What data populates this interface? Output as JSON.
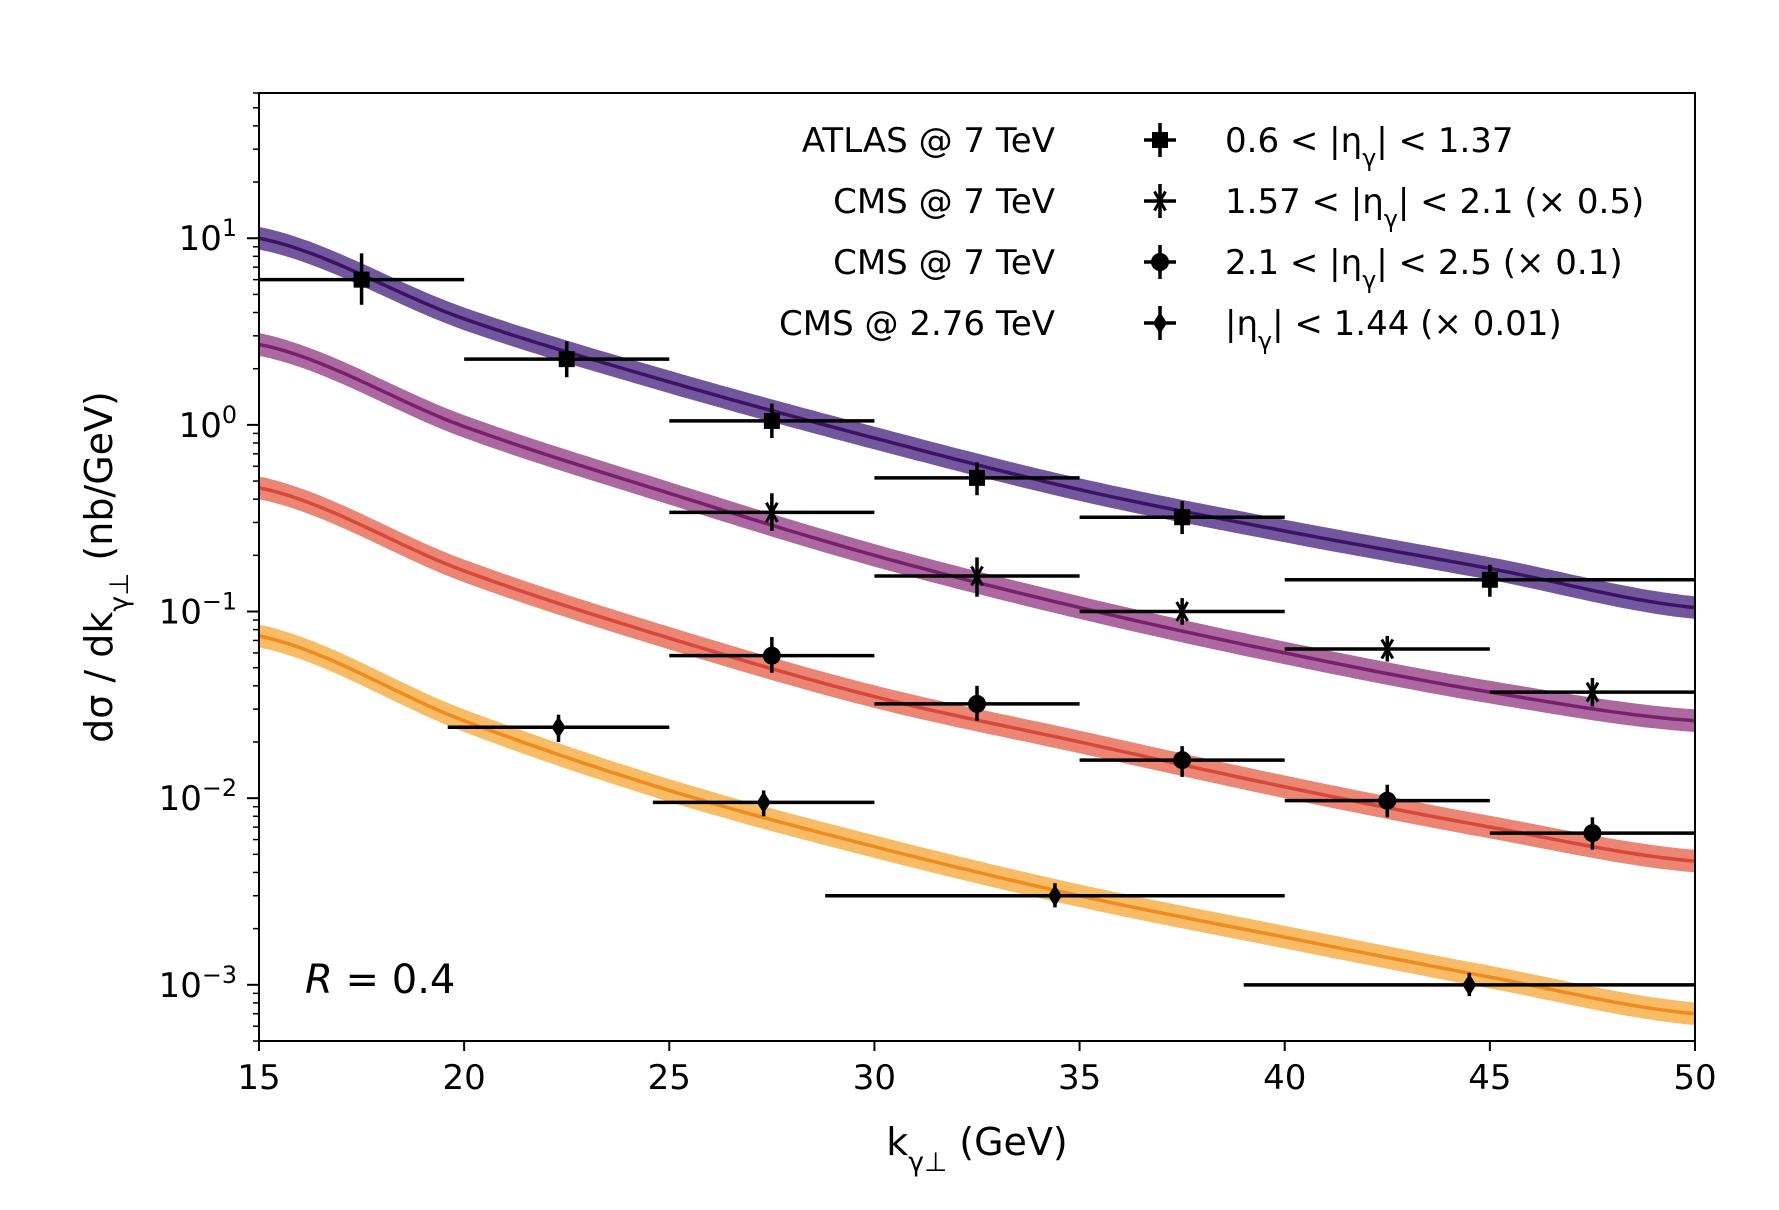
{
  "chart_data": {
    "type": "line",
    "title": "",
    "xlabel": "k_{γ⊥} (GeV)",
    "ylabel": "dσ / dk_{γ⊥}  (nb/GeV)",
    "xlim": [
      15,
      50
    ],
    "ylim": [
      0.0005,
      60
    ],
    "yscale": "log",
    "x_ticks": [
      15,
      20,
      25,
      30,
      35,
      40,
      45,
      50
    ],
    "y_ticks": [
      {
        "value": 0.001,
        "exp": "−3"
      },
      {
        "value": 0.01,
        "exp": "−2"
      },
      {
        "value": 0.1,
        "exp": "−1"
      },
      {
        "value": 1,
        "exp": "0"
      },
      {
        "value": 10,
        "exp": "1"
      }
    ],
    "grid": false,
    "legend_position": "top-right",
    "annotation": {
      "italic": "R",
      "rest": " = 0.4"
    },
    "series": [
      {
        "experiment": "ATLAS @ 7 TeV",
        "range": "0.6 < |η_γ| < 1.37",
        "marker": "square",
        "band_color": "#5b3a8c",
        "line_color": "#3b1366",
        "theory": {
          "x": [
            15,
            20,
            25,
            30,
            35,
            40,
            45,
            50
          ],
          "y": [
            10,
            3.7,
            1.7,
            0.85,
            0.45,
            0.27,
            0.17,
            0.105
          ]
        },
        "points": [
          {
            "x": 17.5,
            "y": 6.0,
            "xerr": [
              15,
              20
            ],
            "yerr": [
              4.4,
              8.3
            ]
          },
          {
            "x": 22.5,
            "y": 2.25,
            "xerr": [
              20,
              25
            ],
            "yerr": [
              1.8,
              2.8
            ]
          },
          {
            "x": 27.5,
            "y": 1.05,
            "xerr": [
              25,
              30
            ],
            "yerr": [
              0.85,
              1.3
            ]
          },
          {
            "x": 32.5,
            "y": 0.52,
            "xerr": [
              30,
              35
            ],
            "yerr": [
              0.42,
              0.63
            ]
          },
          {
            "x": 37.5,
            "y": 0.32,
            "xerr": [
              35,
              40
            ],
            "yerr": [
              0.26,
              0.39
            ]
          },
          {
            "x": 45.0,
            "y": 0.148,
            "xerr": [
              40,
              50
            ],
            "yerr": [
              0.12,
              0.178
            ]
          }
        ]
      },
      {
        "experiment": "CMS @ 7 TeV",
        "range": "1.57 < |η_γ| < 2.1 (× 0.5)",
        "marker": "star",
        "band_color": "#9e4f8e",
        "line_color": "#7a1f6e",
        "theory": {
          "x": [
            15,
            20,
            25,
            30,
            35,
            40,
            45,
            50
          ],
          "y": [
            2.7,
            0.98,
            0.43,
            0.2,
            0.105,
            0.06,
            0.037,
            0.026
          ]
        },
        "points": [
          {
            "x": 27.5,
            "y": 0.34,
            "xerr": [
              25,
              30
            ],
            "yerr": [
              0.27,
              0.43
            ]
          },
          {
            "x": 32.5,
            "y": 0.155,
            "xerr": [
              30,
              35
            ],
            "yerr": [
              0.12,
              0.195
            ]
          },
          {
            "x": 37.5,
            "y": 0.1,
            "xerr": [
              35,
              40
            ],
            "yerr": [
              0.085,
              0.118
            ]
          },
          {
            "x": 42.5,
            "y": 0.063,
            "xerr": [
              40,
              45
            ],
            "yerr": [
              0.054,
              0.074
            ]
          },
          {
            "x": 47.5,
            "y": 0.037,
            "xerr": [
              45,
              50
            ],
            "yerr": [
              0.031,
              0.044
            ]
          }
        ]
      },
      {
        "experiment": "CMS @ 7 TeV",
        "range": "2.1 < |η_γ| < 2.5 (× 0.1)",
        "marker": "circle",
        "band_color": "#e8705c",
        "line_color": "#d9463a",
        "theory": {
          "x": [
            15,
            20,
            25,
            30,
            35,
            40,
            45,
            50
          ],
          "y": [
            0.46,
            0.165,
            0.072,
            0.035,
            0.02,
            0.0115,
            0.007,
            0.0046
          ]
        },
        "points": [
          {
            "x": 27.5,
            "y": 0.058,
            "xerr": [
              25,
              30
            ],
            "yerr": [
              0.047,
              0.073
            ]
          },
          {
            "x": 32.5,
            "y": 0.032,
            "xerr": [
              30,
              35
            ],
            "yerr": [
              0.026,
              0.04
            ]
          },
          {
            "x": 37.5,
            "y": 0.016,
            "xerr": [
              35,
              40
            ],
            "yerr": [
              0.013,
              0.019
            ]
          },
          {
            "x": 42.5,
            "y": 0.0097,
            "xerr": [
              40,
              45
            ],
            "yerr": [
              0.0079,
              0.0118
            ]
          },
          {
            "x": 47.5,
            "y": 0.0065,
            "xerr": [
              45,
              50
            ],
            "yerr": [
              0.0053,
              0.0079
            ]
          }
        ]
      },
      {
        "experiment": "CMS @ 2.76 TeV",
        "range": "|η_γ| < 1.44 (× 0.01)",
        "marker": "diamond",
        "band_color": "#f6b04a",
        "line_color": "#f08a1c",
        "theory": {
          "x": [
            15,
            20,
            25,
            30,
            35,
            40,
            45,
            50
          ],
          "y": [
            0.074,
            0.026,
            0.011,
            0.0055,
            0.003,
            0.0018,
            0.0011,
            0.0007
          ]
        },
        "points": [
          {
            "x": 22.3,
            "y": 0.024,
            "xerr": [
              19.6,
              25
            ],
            "yerr": [
              0.02,
              0.028
            ]
          },
          {
            "x": 27.3,
            "y": 0.0095,
            "xerr": [
              24.6,
              30
            ],
            "yerr": [
              0.008,
              0.011
            ]
          },
          {
            "x": 34.4,
            "y": 0.003,
            "xerr": [
              28.8,
              40
            ],
            "yerr": [
              0.0026,
              0.0035
            ]
          },
          {
            "x": 44.5,
            "y": 0.001,
            "xerr": [
              39,
              50
            ],
            "yerr": [
              0.00087,
              0.00116
            ]
          }
        ]
      }
    ]
  }
}
